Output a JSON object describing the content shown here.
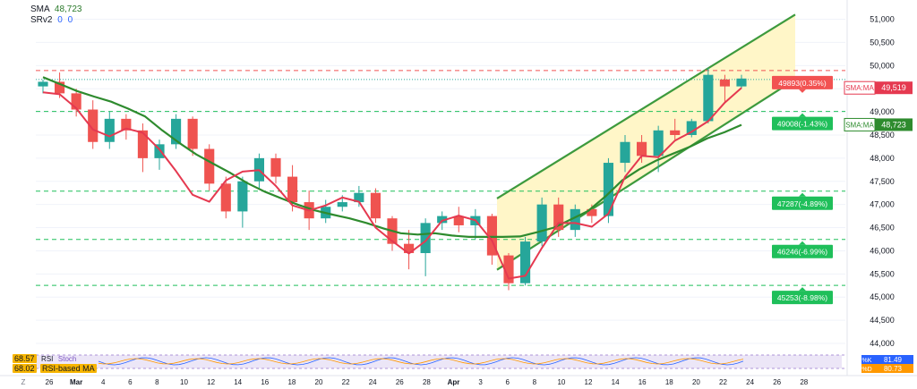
{
  "legend": {
    "sma_label": "SMA",
    "sma_value": "48,723",
    "srv_label": "SRv2",
    "srv_value_1": "0",
    "srv_value_2": "0"
  },
  "indicator_legend": {
    "rsi_value": "68.57",
    "rsi_label": "RSI",
    "rsi_ma_value": "68.02",
    "rsi_ma_label": "RSI-based MA",
    "stoch_label": "Stoch",
    "stoch_k": "81.49",
    "stoch_d": "80.73"
  },
  "colors": {
    "up": "#26a69a",
    "down": "#ef5350",
    "sma_long": "#2e8b2e",
    "sma_short": "#e53950",
    "channel_fill": "#fff6c8",
    "channel_line": "#3d9a3d",
    "level_green": "#1fbf5a",
    "level_red": "#f25252",
    "axis_text": "#131722"
  },
  "chart_data": {
    "type": "candlestick",
    "symbol_indicators": [
      "SMA",
      "SRv2"
    ],
    "y_axis": {
      "ticks": [
        "51,000",
        "50,500",
        "50,000",
        "49,500",
        "49,000",
        "48,500",
        "48,000",
        "47,500",
        "47,000",
        "46,500",
        "46,000",
        "45,500",
        "45,000",
        "44,500",
        "44,000"
      ],
      "range": [
        44000,
        51300
      ]
    },
    "x_axis": {
      "ticks": [
        "26",
        "Mar",
        "4",
        "6",
        "8",
        "10",
        "12",
        "14",
        "16",
        "18",
        "20",
        "22",
        "24",
        "26",
        "28",
        "Apr",
        "3",
        "6",
        "8",
        "10",
        "12",
        "14",
        "16",
        "18",
        "20",
        "22",
        "24",
        "26",
        "28"
      ]
    },
    "levels": [
      {
        "value": 49893,
        "label": "49893(0.35%)",
        "color": "red"
      },
      {
        "value": 49008,
        "label": "49008(-1.43%)",
        "color": "green"
      },
      {
        "value": 47287,
        "label": "47287(-4.89%)",
        "color": "green"
      },
      {
        "value": 46246,
        "label": "46246(-6.99%)",
        "color": "green"
      },
      {
        "value": 45253,
        "label": "45253(-8.98%)",
        "color": "green"
      }
    ],
    "price_labels": [
      {
        "name": "SMA:MA",
        "value": "49,519",
        "price": 49519,
        "color": "red"
      },
      {
        "name": "SMA:MA",
        "value": "48,723",
        "price": 48723,
        "color": "green"
      }
    ],
    "channel": {
      "upper": [
        [
          0,
          47130
        ],
        [
          1,
          51100
        ]
      ],
      "lower": [
        [
          0,
          45590
        ],
        [
          1,
          49700
        ]
      ]
    },
    "sma_long": [
      49750,
      49600,
      49450,
      49330,
      49220,
      49070,
      48900,
      48600,
      48330,
      48080,
      47880,
      47680,
      47460,
      47280,
      47130,
      46990,
      46870,
      46780,
      46700,
      46600,
      46480,
      46380,
      46350,
      46380,
      46330,
      46300,
      46300,
      46300,
      46310,
      46400,
      46500,
      46680,
      46860,
      47170,
      47520,
      47760,
      47950,
      48100,
      48250,
      48430,
      48560,
      48720
    ],
    "sma_short": [
      49420,
      49380,
      49080,
      48620,
      48470,
      48640,
      48550,
      48190,
      47720,
      47210,
      47060,
      47520,
      47710,
      47740,
      47400,
      46980,
      46870,
      46980,
      47150,
      47060,
      46500,
      46210,
      45940,
      46210,
      46650,
      46760,
      46660,
      46220,
      45400,
      45460,
      46060,
      46600,
      46600,
      46520,
      46800,
      47600,
      48050,
      48020,
      48380,
      48570,
      48800,
      49200,
      49520
    ],
    "candles": [
      [
        49550,
        49700,
        49400,
        49650
      ],
      [
        49650,
        49850,
        49300,
        49400
      ],
      [
        49400,
        49500,
        48900,
        49050
      ],
      [
        49050,
        49250,
        48200,
        48350
      ],
      [
        48350,
        49000,
        48200,
        48850
      ],
      [
        48850,
        48950,
        48400,
        48600
      ],
      [
        48600,
        48750,
        47700,
        48000
      ],
      [
        48000,
        48400,
        47750,
        48300
      ],
      [
        48300,
        48950,
        48200,
        48850
      ],
      [
        48850,
        48900,
        48050,
        48200
      ],
      [
        48200,
        48300,
        47300,
        47450
      ],
      [
        47450,
        47600,
        46700,
        46850
      ],
      [
        46850,
        47600,
        46500,
        47500
      ],
      [
        47500,
        48100,
        47350,
        48000
      ],
      [
        48000,
        48100,
        47450,
        47600
      ],
      [
        47600,
        47850,
        46850,
        47050
      ],
      [
        47050,
        47300,
        46450,
        46700
      ],
      [
        46700,
        47100,
        46600,
        46950
      ],
      [
        46950,
        47200,
        46850,
        47050
      ],
      [
        47050,
        47400,
        46950,
        47250
      ],
      [
        47250,
        47350,
        46600,
        46700
      ],
      [
        46700,
        46750,
        46000,
        46150
      ],
      [
        46150,
        46450,
        45600,
        45950
      ],
      [
        45950,
        46700,
        45450,
        46600
      ],
      [
        46600,
        46850,
        46450,
        46750
      ],
      [
        46750,
        46950,
        46400,
        46550
      ],
      [
        46550,
        46900,
        46250,
        46750
      ],
      [
        46750,
        46800,
        45700,
        45900
      ],
      [
        45900,
        45950,
        45150,
        45300
      ],
      [
        45300,
        46300,
        45250,
        46200
      ],
      [
        46200,
        47150,
        46100,
        47000
      ],
      [
        47000,
        47150,
        46300,
        46450
      ],
      [
        46450,
        47000,
        46300,
        46900
      ],
      [
        46900,
        47000,
        46600,
        46750
      ],
      [
        46750,
        48000,
        46600,
        47900
      ],
      [
        47900,
        48500,
        47700,
        48350
      ],
      [
        48350,
        48500,
        47900,
        48050
      ],
      [
        48050,
        48700,
        47700,
        48600
      ],
      [
        48600,
        48850,
        48400,
        48500
      ],
      [
        48500,
        48850,
        48450,
        48800
      ],
      [
        48800,
        49950,
        48750,
        49800
      ],
      [
        49700,
        49800,
        49200,
        49550
      ],
      [
        49550,
        49800,
        49500,
        49720
      ]
    ]
  }
}
